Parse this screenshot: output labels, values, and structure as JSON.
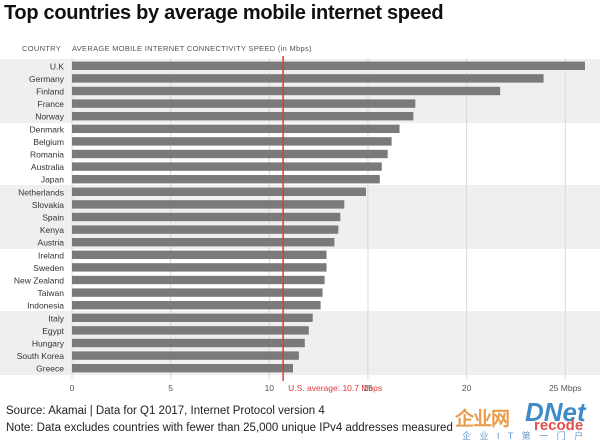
{
  "title": "Top countries by average mobile internet speed",
  "source": "Source: Akamai | Data for Q1 2017, Internet Protocol version 4",
  "note": "Note: Data excludes countries with fewer than 25,000 unique IPv4 addresses measured",
  "watermark": {
    "cn": "企业网",
    "dinet": "DNet",
    "recode": "recode",
    "sub": "企 业 I T 第 一 门 户"
  },
  "colors": {
    "bar": "#7a7a7a",
    "band": "#efefef",
    "reference": "#e03a3a",
    "grid": "#d8d8d8"
  },
  "chart_data": {
    "type": "bar",
    "orientation": "horizontal",
    "category_header": "COUNTRY",
    "value_header": "AVERAGE MOBILE INTERNET CONNECTIVITY SPEED (in Mbps)",
    "categories": [
      "U.K",
      "Germany",
      "Finland",
      "France",
      "Norway",
      "Denmark",
      "Belgium",
      "Romania",
      "Australia",
      "Japan",
      "Netherlands",
      "Slovakia",
      "Spain",
      "Kenya",
      "Austria",
      "Ireland",
      "Sweden",
      "New Zealand",
      "Taiwan",
      "Indonesia",
      "Italy",
      "Egypt",
      "Hungary",
      "South Korea",
      "Greece"
    ],
    "values": [
      26.0,
      23.9,
      21.7,
      17.4,
      17.3,
      16.6,
      16.2,
      16.0,
      15.7,
      15.6,
      14.9,
      13.8,
      13.6,
      13.5,
      13.3,
      12.9,
      12.9,
      12.8,
      12.7,
      12.6,
      12.2,
      12.0,
      11.8,
      11.5,
      11.2
    ],
    "xlim": [
      0,
      26
    ],
    "xticks": [
      0,
      5,
      10,
      15,
      20,
      25
    ],
    "xtick_labels": [
      "0",
      "5",
      "10",
      "15",
      "20",
      "25 Mbps"
    ],
    "reference": {
      "value": 10.7,
      "label": "U.S. average: 10.7 Mbps"
    },
    "band_groups": [
      [
        0,
        4
      ],
      [
        10,
        14
      ],
      [
        20,
        24
      ]
    ],
    "grid": true
  }
}
